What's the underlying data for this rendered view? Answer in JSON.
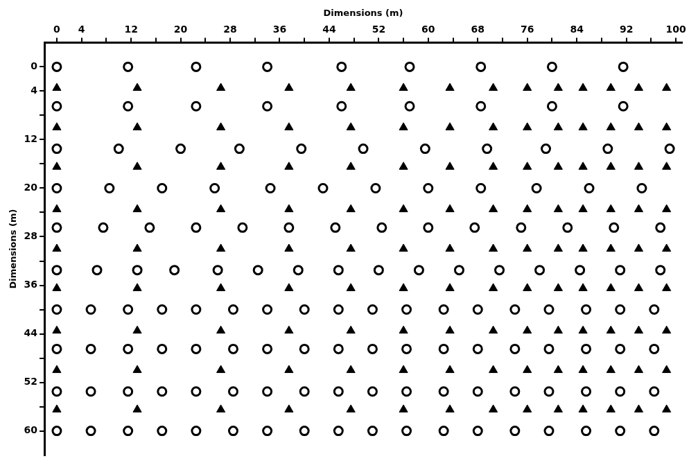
{
  "chart_data": {
    "type": "scatter",
    "xlabel": "Dimensions (m)",
    "ylabel": "Dimensions (m)",
    "xlim": [
      -2,
      101
    ],
    "ylim": [
      64,
      -4
    ],
    "xticks": [
      0,
      4,
      {
        "value": 8,
        "label": null
      },
      12,
      {
        "value": 16,
        "label": null
      },
      20,
      {
        "value": 24,
        "label": null
      },
      28,
      {
        "value": 32,
        "label": null
      },
      36,
      {
        "value": 40,
        "label": null
      },
      44,
      {
        "value": 48,
        "label": null
      },
      52,
      {
        "value": 56,
        "label": null
      },
      60,
      {
        "value": 64,
        "label": null
      },
      68,
      {
        "value": 72,
        "label": null
      },
      76,
      {
        "value": 80,
        "label": null
      },
      84,
      {
        "value": 88,
        "label": null
      },
      92,
      {
        "value": 96,
        "label": null
      },
      100
    ],
    "yticks": [
      0,
      4,
      {
        "value": 8,
        "label": null
      },
      12,
      {
        "value": 16,
        "label": null
      },
      20,
      {
        "value": 24,
        "label": null
      },
      28,
      {
        "value": 32,
        "label": null
      },
      36,
      {
        "value": 40,
        "label": null
      },
      44,
      {
        "value": 48,
        "label": null
      },
      52,
      {
        "value": 56,
        "label": null
      },
      60
    ],
    "legend": false,
    "series": [
      {
        "color": "#000000",
        "marker": "circle",
        "x": [
          0,
          11.5,
          22.5,
          34,
          46,
          57,
          68.5,
          80,
          91.5,
          0,
          11.5,
          22.5,
          34,
          46,
          57,
          68.5,
          80,
          91.5,
          0,
          10,
          20,
          29.5,
          39.5,
          49.5,
          59.5,
          69.5,
          79,
          89,
          99,
          0,
          8.5,
          17,
          25.5,
          34.5,
          43,
          51.5,
          60,
          68.5,
          77.5,
          86,
          94.5,
          0,
          7.5,
          15,
          22.5,
          30,
          37.5,
          45,
          52.5,
          60,
          67.5,
          75,
          82.5,
          90,
          97.5,
          0,
          6.5,
          13,
          19,
          26,
          32.5,
          39,
          45.5,
          52,
          58.5,
          65,
          71.5,
          78,
          84.5,
          91,
          97.5,
          0,
          5.5,
          11.5,
          17,
          22.5,
          28.5,
          34,
          40,
          45.5,
          51,
          56.5,
          62.5,
          68,
          74,
          79.5,
          85.5,
          91,
          96.5,
          0,
          5.5,
          11.5,
          17,
          22.5,
          28.5,
          34,
          40,
          45.5,
          51,
          56.5,
          62.5,
          68,
          74,
          79.5,
          85.5,
          91,
          96.5,
          0,
          5.5,
          11.5,
          17,
          22.5,
          28.5,
          34,
          40,
          45.5,
          51,
          56.5,
          62.5,
          68,
          74,
          79.5,
          85.5,
          91,
          96.5,
          0,
          5.5,
          11.5,
          17,
          22.5,
          28.5,
          34,
          40,
          45.5,
          51,
          56.5,
          62.5,
          68,
          74,
          79.5,
          85.5,
          91,
          96.5
        ],
        "values": [
          0,
          0,
          0,
          0,
          0,
          0,
          0,
          0,
          0,
          6.5,
          6.5,
          6.5,
          6.5,
          6.5,
          6.5,
          6.5,
          6.5,
          6.5,
          13.5,
          13.5,
          13.5,
          13.5,
          13.5,
          13.5,
          13.5,
          13.5,
          13.5,
          13.5,
          13.5,
          20,
          20,
          20,
          20,
          20,
          20,
          20,
          20,
          20,
          20,
          20,
          20,
          26.5,
          26.5,
          26.5,
          26.5,
          26.5,
          26.5,
          26.5,
          26.5,
          26.5,
          26.5,
          26.5,
          26.5,
          26.5,
          26.5,
          33.5,
          33.5,
          33.5,
          33.5,
          33.5,
          33.5,
          33.5,
          33.5,
          33.5,
          33.5,
          33.5,
          33.5,
          33.5,
          33.5,
          33.5,
          33.5,
          40,
          40,
          40,
          40,
          40,
          40,
          40,
          40,
          40,
          40,
          40,
          40,
          40,
          40,
          40,
          40,
          40,
          40,
          46.5,
          46.5,
          46.5,
          46.5,
          46.5,
          46.5,
          46.5,
          46.5,
          46.5,
          46.5,
          46.5,
          46.5,
          46.5,
          46.5,
          46.5,
          46.5,
          46.5,
          46.5,
          53.5,
          53.5,
          53.5,
          53.5,
          53.5,
          53.5,
          53.5,
          53.5,
          53.5,
          53.5,
          53.5,
          53.5,
          53.5,
          53.5,
          53.5,
          53.5,
          53.5,
          53.5,
          60,
          60,
          60,
          60,
          60,
          60,
          60,
          60,
          60,
          60,
          60,
          60,
          60,
          60,
          60,
          60,
          60,
          60
        ]
      },
      {
        "color": "#000000",
        "marker": "triangle",
        "x": [
          0,
          13,
          26.5,
          37.5,
          47.5,
          56,
          63.5,
          70.5,
          76,
          81,
          85,
          89.5,
          94,
          98.5,
          0,
          13,
          26.5,
          37.5,
          47.5,
          56,
          63.5,
          70.5,
          76,
          81,
          85,
          89.5,
          94,
          98.5,
          0,
          13,
          26.5,
          37.5,
          47.5,
          56,
          63.5,
          70.5,
          76,
          81,
          85,
          89.5,
          94,
          98.5,
          0,
          13,
          26.5,
          37.5,
          47.5,
          56,
          63.5,
          70.5,
          76,
          81,
          85,
          89.5,
          94,
          98.5,
          0,
          13,
          26.5,
          37.5,
          47.5,
          56,
          63.5,
          70.5,
          76,
          81,
          85,
          89.5,
          94,
          98.5,
          0,
          13,
          26.5,
          37.5,
          47.5,
          56,
          63.5,
          70.5,
          76,
          81,
          85,
          89.5,
          94,
          98.5,
          0,
          13,
          26.5,
          37.5,
          47.5,
          56,
          63.5,
          70.5,
          76,
          81,
          85,
          89.5,
          94,
          98.5,
          0,
          13,
          26.5,
          37.5,
          47.5,
          56,
          63.5,
          70.5,
          76,
          81,
          85,
          89.5,
          94,
          98.5,
          0,
          13,
          26.5,
          37.5,
          47.5,
          56,
          63.5,
          70.5,
          76,
          81,
          85,
          89.5,
          94,
          98.5
        ],
        "values": [
          3.5,
          3.5,
          3.5,
          3.5,
          3.5,
          3.5,
          3.5,
          3.5,
          3.5,
          3.5,
          3.5,
          3.5,
          3.5,
          3.5,
          10,
          10,
          10,
          10,
          10,
          10,
          10,
          10,
          10,
          10,
          10,
          10,
          10,
          10,
          16.5,
          16.5,
          16.5,
          16.5,
          16.5,
          16.5,
          16.5,
          16.5,
          16.5,
          16.5,
          16.5,
          16.5,
          16.5,
          16.5,
          23.5,
          23.5,
          23.5,
          23.5,
          23.5,
          23.5,
          23.5,
          23.5,
          23.5,
          23.5,
          23.5,
          23.5,
          23.5,
          23.5,
          30,
          30,
          30,
          30,
          30,
          30,
          30,
          30,
          30,
          30,
          30,
          30,
          30,
          30,
          36.5,
          36.5,
          36.5,
          36.5,
          36.5,
          36.5,
          36.5,
          36.5,
          36.5,
          36.5,
          36.5,
          36.5,
          36.5,
          36.5,
          43.5,
          43.5,
          43.5,
          43.5,
          43.5,
          43.5,
          43.5,
          43.5,
          43.5,
          43.5,
          43.5,
          43.5,
          43.5,
          43.5,
          50,
          50,
          50,
          50,
          50,
          50,
          50,
          50,
          50,
          50,
          50,
          50,
          50,
          50,
          56.5,
          56.5,
          56.5,
          56.5,
          56.5,
          56.5,
          56.5,
          56.5,
          56.5,
          56.5,
          56.5,
          56.5,
          56.5,
          56.5
        ]
      }
    ]
  }
}
